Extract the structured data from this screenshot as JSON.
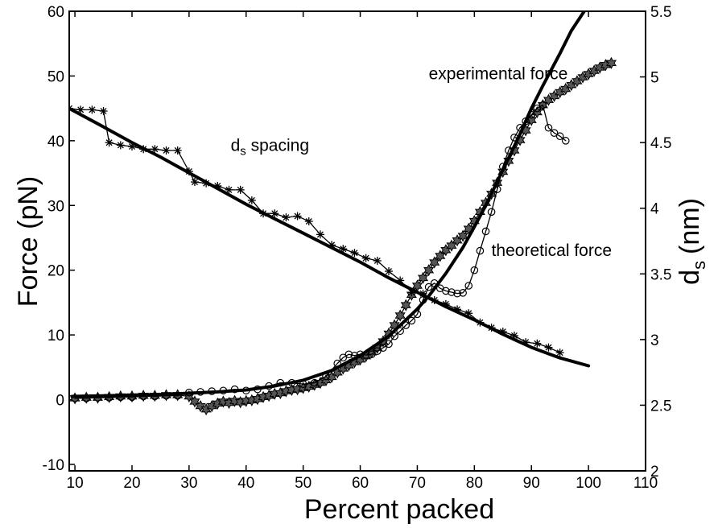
{
  "chart_data": {
    "type": "line",
    "xlabel": "Percent packed",
    "ylabel_left": "Force (pN)",
    "ylabel_right_main": "d",
    "ylabel_right_sub": "s",
    "ylabel_right_unit": "(nm)",
    "xlim": [
      9,
      110
    ],
    "ylim_left": [
      -11,
      60
    ],
    "ylim_right": [
      2.0,
      5.5
    ],
    "grid": false,
    "x_ticks": [
      10,
      20,
      30,
      40,
      50,
      60,
      70,
      80,
      90,
      100,
      110
    ],
    "y_ticks_left": [
      -10,
      0,
      10,
      20,
      30,
      40,
      50,
      60
    ],
    "y_ticks_right": [
      "2",
      "2.5",
      "3",
      "3.5",
      "4",
      "4.5",
      "5",
      "5.5"
    ],
    "annotations": [
      {
        "text": "experimental force",
        "x": 72,
        "y": 49.5,
        "axis": "left"
      },
      {
        "text": "theoretical force",
        "x": 83,
        "y": 22.2,
        "axis": "left"
      },
      {
        "main": "d",
        "sub": "s",
        "text": " spacing",
        "x": 37.3,
        "y": 38.4,
        "axis": "left"
      }
    ],
    "series": [
      {
        "name": "experimental force",
        "axis": "left",
        "marker": "hexagram",
        "x": [
          10,
          12,
          14,
          16,
          18,
          20,
          22,
          24,
          26,
          28,
          30,
          31,
          32,
          33,
          34,
          35,
          36,
          37,
          38,
          39,
          40,
          41,
          42,
          43,
          44,
          45,
          46,
          47,
          48,
          49,
          50,
          51,
          52,
          53,
          54,
          55,
          56,
          57,
          58,
          59,
          60,
          61,
          62,
          63,
          64,
          65,
          66,
          67,
          68,
          69,
          70,
          71,
          72,
          73,
          74,
          75,
          76,
          77,
          78,
          79,
          80,
          81,
          82,
          83,
          84,
          85,
          86,
          87,
          88,
          89,
          90,
          91,
          92,
          93,
          94,
          95,
          96,
          97,
          98,
          99,
          100,
          101,
          102,
          103,
          104
        ],
        "values": [
          0.2,
          0.3,
          0.3,
          0.4,
          0.5,
          0.5,
          0.6,
          0.6,
          0.7,
          0.7,
          0.5,
          -0.3,
          -1.0,
          -1.5,
          -1.0,
          -0.6,
          -0.3,
          -0.5,
          -0.2,
          -0.4,
          -0.2,
          -0.1,
          0.1,
          0.4,
          0.6,
          0.9,
          1.0,
          1.3,
          1.5,
          1.6,
          1.8,
          2.0,
          2.3,
          2.6,
          3.0,
          3.5,
          4.2,
          4.8,
          5.3,
          5.8,
          6.2,
          6.7,
          7.3,
          8.0,
          9.0,
          10.2,
          11.5,
          13.0,
          14.6,
          16.2,
          17.6,
          18.8,
          20.0,
          21.2,
          22.2,
          23.1,
          23.8,
          24.6,
          25.3,
          26.4,
          27.6,
          29.0,
          30.4,
          31.8,
          33.5,
          35.2,
          36.9,
          38.5,
          40.1,
          41.6,
          43.2,
          44.4,
          45.5,
          46.3,
          46.9,
          47.5,
          48.0,
          48.6,
          49.2,
          49.8,
          50.3,
          50.8,
          51.3,
          51.7,
          52.0
        ]
      },
      {
        "name": "theoretical force",
        "axis": "left",
        "marker": "circle",
        "x": [
          10,
          12,
          14,
          16,
          18,
          20,
          22,
          24,
          26,
          28,
          30,
          32,
          34,
          36,
          38,
          40,
          42,
          44,
          46,
          48,
          50,
          52,
          54,
          56,
          57,
          58,
          59,
          60,
          61,
          62,
          63,
          64,
          65,
          66,
          67,
          68,
          69,
          70,
          71,
          72,
          73,
          74,
          75,
          76,
          77,
          78,
          79,
          80,
          81,
          82,
          83,
          84,
          85,
          86,
          87,
          88,
          89,
          90,
          91,
          92,
          93,
          94,
          95,
          96
        ],
        "values": [
          0.2,
          0.2,
          0.3,
          0.3,
          0.4,
          0.4,
          0.5,
          0.5,
          0.6,
          0.6,
          1.1,
          1.2,
          1.3,
          1.4,
          1.6,
          1.4,
          1.6,
          2.1,
          2.6,
          2.6,
          2.4,
          2.6,
          3.6,
          5.6,
          6.5,
          7.0,
          6.8,
          7.0,
          6.9,
          7.0,
          7.5,
          8.0,
          8.6,
          9.8,
          10.6,
          11.5,
          12.2,
          13.2,
          15.4,
          17.4,
          18.0,
          17.2,
          16.8,
          16.6,
          16.4,
          16.5,
          17.6,
          20.0,
          23.0,
          26.0,
          29.0,
          32.5,
          36.0,
          38.5,
          40.5,
          42.0,
          43.0,
          44.0,
          45.0,
          45.5,
          42.0,
          41.2,
          40.7,
          40.0
        ]
      },
      {
        "name": "theoretical fit",
        "axis": "left",
        "marker": "none",
        "x": [
          9.5,
          15,
          20,
          25,
          30,
          35,
          40,
          45,
          50,
          55,
          60,
          65,
          70,
          72,
          75,
          78,
          80,
          82,
          85,
          88,
          90,
          92,
          95,
          97,
          100
        ],
        "values": [
          0.5,
          0.6,
          0.7,
          0.8,
          1.0,
          1.2,
          1.5,
          2.1,
          3.0,
          4.5,
          6.8,
          9.8,
          14.0,
          16.0,
          19.5,
          23.5,
          26.7,
          30.0,
          35.5,
          41.0,
          45.0,
          48.5,
          53.5,
          57.0,
          61.0
        ]
      },
      {
        "name": "d spacing",
        "axis": "right",
        "marker": "asterisk",
        "x": [
          9,
          11,
          13,
          15,
          16,
          18,
          20,
          22,
          24,
          26,
          28,
          30,
          31,
          33,
          35,
          37,
          39,
          41,
          43,
          45,
          47,
          49,
          51,
          53,
          55,
          57,
          59,
          61,
          63,
          65,
          67,
          69,
          71,
          73,
          75,
          77,
          79,
          81,
          83,
          85,
          87,
          89,
          91,
          93,
          95
        ],
        "values": [
          4.76,
          4.75,
          4.75,
          4.74,
          4.5,
          4.48,
          4.47,
          4.45,
          4.45,
          4.44,
          4.44,
          4.28,
          4.2,
          4.19,
          4.17,
          4.14,
          4.14,
          4.06,
          3.96,
          3.96,
          3.93,
          3.94,
          3.9,
          3.8,
          3.72,
          3.69,
          3.66,
          3.62,
          3.6,
          3.52,
          3.45,
          3.36,
          3.35,
          3.3,
          3.27,
          3.23,
          3.2,
          3.13,
          3.09,
          3.06,
          3.03,
          2.98,
          2.97,
          2.94,
          2.9
        ]
      },
      {
        "name": "d spacing fit",
        "axis": "right",
        "marker": "none",
        "x": [
          9,
          15,
          20,
          25,
          30,
          35,
          40,
          45,
          50,
          55,
          60,
          65,
          70,
          75,
          80,
          85,
          90,
          95,
          100
        ],
        "values": [
          4.76,
          4.62,
          4.5,
          4.39,
          4.27,
          4.15,
          4.03,
          3.92,
          3.81,
          3.7,
          3.59,
          3.47,
          3.36,
          3.25,
          3.15,
          3.04,
          2.94,
          2.86,
          2.8
        ]
      }
    ]
  }
}
